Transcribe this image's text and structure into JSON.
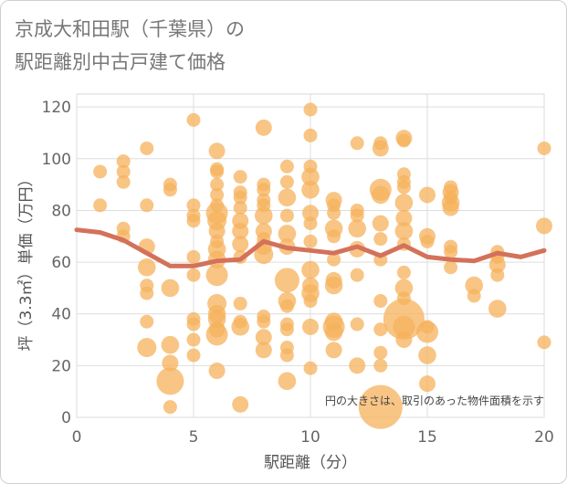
{
  "title": "京成大和田駅（千葉県）の\n駅距離別中古戸建て価格",
  "chart_data": {
    "type": "scatter",
    "title": "京成大和田駅（千葉県）の駅距離別中古戸建て価格",
    "xlabel": "駅距離（分）",
    "ylabel": "坪（3.3㎡）単価（万円）",
    "xlim": [
      0,
      20
    ],
    "ylim": [
      0,
      125
    ],
    "xticks": [
      0,
      5,
      10,
      15,
      20
    ],
    "yticks": [
      0,
      20,
      40,
      60,
      80,
      100,
      120
    ],
    "grid": true,
    "annotation": "円の大きさは、取引のあった物件面積を示す",
    "colors": {
      "bubble": "#f5b25c",
      "line": "#d4715a"
    },
    "average_line": {
      "x": [
        0,
        1,
        2,
        3,
        4,
        5,
        6,
        7,
        8,
        9,
        10,
        11,
        12,
        13,
        14,
        15,
        16,
        17,
        18,
        19,
        20
      ],
      "y": [
        72.5,
        71.5,
        68.5,
        63.5,
        58.5,
        58.5,
        60.5,
        61,
        68,
        65.5,
        64.5,
        63.5,
        66,
        62.5,
        66.5,
        62,
        61,
        60.5,
        63.5,
        62,
        64.5
      ]
    },
    "points": [
      {
        "x": 1,
        "y": 95,
        "s": 1
      },
      {
        "x": 1,
        "y": 82,
        "s": 1
      },
      {
        "x": 2,
        "y": 99,
        "s": 1
      },
      {
        "x": 2,
        "y": 95,
        "s": 1
      },
      {
        "x": 2,
        "y": 91,
        "s": 1
      },
      {
        "x": 2,
        "y": 73,
        "s": 1
      },
      {
        "x": 2,
        "y": 70,
        "s": 1
      },
      {
        "x": 3,
        "y": 104,
        "s": 1
      },
      {
        "x": 3,
        "y": 82,
        "s": 1
      },
      {
        "x": 3,
        "y": 66,
        "s": 1.2
      },
      {
        "x": 3,
        "y": 58,
        "s": 1.3
      },
      {
        "x": 3,
        "y": 51,
        "s": 1
      },
      {
        "x": 3,
        "y": 48,
        "s": 1
      },
      {
        "x": 3,
        "y": 37,
        "s": 1
      },
      {
        "x": 3,
        "y": 27,
        "s": 1.4
      },
      {
        "x": 4,
        "y": 90,
        "s": 1
      },
      {
        "x": 4,
        "y": 88,
        "s": 1
      },
      {
        "x": 4,
        "y": 50,
        "s": 1.3
      },
      {
        "x": 4,
        "y": 28,
        "s": 1.3
      },
      {
        "x": 4,
        "y": 21,
        "s": 1.2
      },
      {
        "x": 4,
        "y": 14,
        "s": 2
      },
      {
        "x": 4,
        "y": 4,
        "s": 1
      },
      {
        "x": 5,
        "y": 115,
        "s": 1
      },
      {
        "x": 5,
        "y": 82,
        "s": 1
      },
      {
        "x": 5,
        "y": 78,
        "s": 1
      },
      {
        "x": 5,
        "y": 76,
        "s": 1
      },
      {
        "x": 5,
        "y": 62,
        "s": 1
      },
      {
        "x": 5,
        "y": 55,
        "s": 1
      },
      {
        "x": 5,
        "y": 38,
        "s": 1
      },
      {
        "x": 5,
        "y": 36,
        "s": 1
      },
      {
        "x": 5,
        "y": 30,
        "s": 1
      },
      {
        "x": 5,
        "y": 24,
        "s": 1
      },
      {
        "x": 6,
        "y": 103,
        "s": 1.2
      },
      {
        "x": 6,
        "y": 96,
        "s": 1
      },
      {
        "x": 6,
        "y": 95,
        "s": 1
      },
      {
        "x": 6,
        "y": 90,
        "s": 1
      },
      {
        "x": 6,
        "y": 86,
        "s": 1
      },
      {
        "x": 6,
        "y": 82,
        "s": 1
      },
      {
        "x": 6,
        "y": 79,
        "s": 1.6
      },
      {
        "x": 6,
        "y": 76,
        "s": 1.4
      },
      {
        "x": 6,
        "y": 72,
        "s": 1.2
      },
      {
        "x": 6,
        "y": 68,
        "s": 1
      },
      {
        "x": 6,
        "y": 65,
        "s": 1.3
      },
      {
        "x": 6,
        "y": 61,
        "s": 1.3
      },
      {
        "x": 6,
        "y": 55,
        "s": 1.6
      },
      {
        "x": 6,
        "y": 44,
        "s": 1.4
      },
      {
        "x": 6,
        "y": 40,
        "s": 1.3
      },
      {
        "x": 6,
        "y": 38,
        "s": 1.3
      },
      {
        "x": 6,
        "y": 34,
        "s": 1.2
      },
      {
        "x": 6,
        "y": 32,
        "s": 1.6
      },
      {
        "x": 6,
        "y": 18,
        "s": 1.2
      },
      {
        "x": 7,
        "y": 93,
        "s": 1
      },
      {
        "x": 7,
        "y": 87,
        "s": 1
      },
      {
        "x": 7,
        "y": 85,
        "s": 1
      },
      {
        "x": 7,
        "y": 81,
        "s": 1
      },
      {
        "x": 7,
        "y": 76,
        "s": 1.2
      },
      {
        "x": 7,
        "y": 72,
        "s": 1.2
      },
      {
        "x": 7,
        "y": 67,
        "s": 1.2
      },
      {
        "x": 7,
        "y": 62,
        "s": 1
      },
      {
        "x": 7,
        "y": 44,
        "s": 1
      },
      {
        "x": 7,
        "y": 37,
        "s": 1
      },
      {
        "x": 7,
        "y": 35,
        "s": 1.3
      },
      {
        "x": 7,
        "y": 5,
        "s": 1.2
      },
      {
        "x": 8,
        "y": 112,
        "s": 1.2
      },
      {
        "x": 8,
        "y": 90,
        "s": 1
      },
      {
        "x": 8,
        "y": 88,
        "s": 1
      },
      {
        "x": 8,
        "y": 84,
        "s": 1
      },
      {
        "x": 8,
        "y": 82,
        "s": 1
      },
      {
        "x": 8,
        "y": 78,
        "s": 1.3
      },
      {
        "x": 8,
        "y": 72,
        "s": 1.2
      },
      {
        "x": 8,
        "y": 69,
        "s": 1
      },
      {
        "x": 8,
        "y": 66,
        "s": 1.2
      },
      {
        "x": 8,
        "y": 63,
        "s": 1.4
      },
      {
        "x": 8,
        "y": 39,
        "s": 1
      },
      {
        "x": 8,
        "y": 37,
        "s": 1
      },
      {
        "x": 8,
        "y": 31,
        "s": 1.2
      },
      {
        "x": 8,
        "y": 26,
        "s": 1.2
      },
      {
        "x": 9,
        "y": 97,
        "s": 1
      },
      {
        "x": 9,
        "y": 91,
        "s": 1
      },
      {
        "x": 9,
        "y": 85,
        "s": 1.3
      },
      {
        "x": 9,
        "y": 78,
        "s": 1
      },
      {
        "x": 9,
        "y": 71,
        "s": 1.3
      },
      {
        "x": 9,
        "y": 66,
        "s": 1.2
      },
      {
        "x": 9,
        "y": 53,
        "s": 1.8
      },
      {
        "x": 9,
        "y": 45,
        "s": 1.3
      },
      {
        "x": 9,
        "y": 43,
        "s": 1
      },
      {
        "x": 9,
        "y": 36,
        "s": 1
      },
      {
        "x": 9,
        "y": 34,
        "s": 1
      },
      {
        "x": 9,
        "y": 27,
        "s": 1
      },
      {
        "x": 9,
        "y": 24,
        "s": 1
      },
      {
        "x": 9,
        "y": 14,
        "s": 1.3
      },
      {
        "x": 10,
        "y": 119,
        "s": 1
      },
      {
        "x": 10,
        "y": 109,
        "s": 1
      },
      {
        "x": 10,
        "y": 97,
        "s": 1
      },
      {
        "x": 10,
        "y": 93,
        "s": 1.3
      },
      {
        "x": 10,
        "y": 88,
        "s": 1.3
      },
      {
        "x": 10,
        "y": 79,
        "s": 1.2
      },
      {
        "x": 10,
        "y": 75,
        "s": 1
      },
      {
        "x": 10,
        "y": 68,
        "s": 1
      },
      {
        "x": 10,
        "y": 57,
        "s": 1.3
      },
      {
        "x": 10,
        "y": 51,
        "s": 1.2
      },
      {
        "x": 10,
        "y": 48,
        "s": 1.3
      },
      {
        "x": 10,
        "y": 45,
        "s": 1
      },
      {
        "x": 10,
        "y": 35,
        "s": 1.2
      },
      {
        "x": 10,
        "y": 19,
        "s": 1
      },
      {
        "x": 11,
        "y": 84,
        "s": 1.2
      },
      {
        "x": 11,
        "y": 82,
        "s": 1
      },
      {
        "x": 11,
        "y": 79,
        "s": 1
      },
      {
        "x": 11,
        "y": 73,
        "s": 1.3
      },
      {
        "x": 11,
        "y": 70,
        "s": 1
      },
      {
        "x": 11,
        "y": 61,
        "s": 1
      },
      {
        "x": 11,
        "y": 53,
        "s": 1.2
      },
      {
        "x": 11,
        "y": 51,
        "s": 1.3
      },
      {
        "x": 11,
        "y": 37,
        "s": 1.3
      },
      {
        "x": 11,
        "y": 35,
        "s": 1.6
      },
      {
        "x": 11,
        "y": 33,
        "s": 1.3
      },
      {
        "x": 11,
        "y": 26,
        "s": 1.2
      },
      {
        "x": 12,
        "y": 106,
        "s": 1
      },
      {
        "x": 12,
        "y": 80,
        "s": 1
      },
      {
        "x": 12,
        "y": 78,
        "s": 1
      },
      {
        "x": 12,
        "y": 73,
        "s": 1.3
      },
      {
        "x": 12,
        "y": 65,
        "s": 1.2
      },
      {
        "x": 12,
        "y": 55,
        "s": 1
      },
      {
        "x": 12,
        "y": 36,
        "s": 1
      },
      {
        "x": 12,
        "y": 20,
        "s": 1.2
      },
      {
        "x": 13,
        "y": 106,
        "s": 1
      },
      {
        "x": 13,
        "y": 104,
        "s": 1.2
      },
      {
        "x": 13,
        "y": 88,
        "s": 1.6
      },
      {
        "x": 13,
        "y": 86,
        "s": 1.3
      },
      {
        "x": 13,
        "y": 75,
        "s": 1.2
      },
      {
        "x": 13,
        "y": 69,
        "s": 1
      },
      {
        "x": 13,
        "y": 61,
        "s": 1
      },
      {
        "x": 13,
        "y": 45,
        "s": 1
      },
      {
        "x": 13,
        "y": 34,
        "s": 1
      },
      {
        "x": 13,
        "y": 25,
        "s": 1
      },
      {
        "x": 13,
        "y": 20,
        "s": 1
      },
      {
        "x": 13,
        "y": 4,
        "s": 3.2
      },
      {
        "x": 14,
        "y": 108,
        "s": 1.2
      },
      {
        "x": 14,
        "y": 107,
        "s": 1
      },
      {
        "x": 14,
        "y": 94,
        "s": 1
      },
      {
        "x": 14,
        "y": 91,
        "s": 1
      },
      {
        "x": 14,
        "y": 89,
        "s": 1
      },
      {
        "x": 14,
        "y": 83,
        "s": 1.3
      },
      {
        "x": 14,
        "y": 77,
        "s": 1.2
      },
      {
        "x": 14,
        "y": 72,
        "s": 1.3
      },
      {
        "x": 14,
        "y": 67,
        "s": 1
      },
      {
        "x": 14,
        "y": 56,
        "s": 1
      },
      {
        "x": 14,
        "y": 50,
        "s": 1.3
      },
      {
        "x": 14,
        "y": 46,
        "s": 1
      },
      {
        "x": 14,
        "y": 38,
        "s": 3
      },
      {
        "x": 14,
        "y": 35,
        "s": 1.6
      },
      {
        "x": 14,
        "y": 30,
        "s": 1.2
      },
      {
        "x": 15,
        "y": 86,
        "s": 1.2
      },
      {
        "x": 15,
        "y": 70,
        "s": 1.2
      },
      {
        "x": 15,
        "y": 68,
        "s": 1
      },
      {
        "x": 15,
        "y": 35,
        "s": 1
      },
      {
        "x": 15,
        "y": 33,
        "s": 1.6
      },
      {
        "x": 15,
        "y": 24,
        "s": 1.3
      },
      {
        "x": 15,
        "y": 13,
        "s": 1.2
      },
      {
        "x": 16,
        "y": 89,
        "s": 1
      },
      {
        "x": 16,
        "y": 87,
        "s": 1.2
      },
      {
        "x": 16,
        "y": 85,
        "s": 1
      },
      {
        "x": 16,
        "y": 83,
        "s": 1.3
      },
      {
        "x": 16,
        "y": 81,
        "s": 1.2
      },
      {
        "x": 16,
        "y": 66,
        "s": 1
      },
      {
        "x": 16,
        "y": 64,
        "s": 1
      },
      {
        "x": 16,
        "y": 58,
        "s": 1
      },
      {
        "x": 17,
        "y": 51,
        "s": 1.3
      },
      {
        "x": 17,
        "y": 47,
        "s": 1
      },
      {
        "x": 18,
        "y": 64,
        "s": 1
      },
      {
        "x": 18,
        "y": 62,
        "s": 1
      },
      {
        "x": 18,
        "y": 59,
        "s": 1.2
      },
      {
        "x": 18,
        "y": 55,
        "s": 1
      },
      {
        "x": 18,
        "y": 42,
        "s": 1.3
      },
      {
        "x": 20,
        "y": 104,
        "s": 1
      },
      {
        "x": 20,
        "y": 74,
        "s": 1.2
      },
      {
        "x": 20,
        "y": 29,
        "s": 1
      }
    ]
  }
}
